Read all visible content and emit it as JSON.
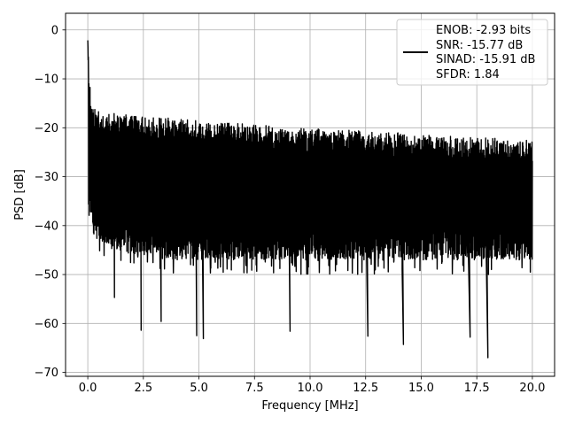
{
  "chart_data": {
    "type": "line",
    "title": "",
    "xlabel": "Frequency [MHz]",
    "ylabel": "PSD [dB]",
    "xlim": [
      -1.0,
      21.0
    ],
    "ylim": [
      -70.8,
      3.4
    ],
    "x_ticks": [
      0.0,
      2.5,
      5.0,
      7.5,
      10.0,
      12.5,
      15.0,
      17.5,
      20.0
    ],
    "x_tick_labels": [
      "0.0",
      "2.5",
      "5.0",
      "7.5",
      "10.0",
      "12.5",
      "15.0",
      "17.5",
      "20.0"
    ],
    "y_ticks": [
      0,
      -10,
      -20,
      -30,
      -40,
      -50,
      -60,
      -70
    ],
    "y_tick_labels": [
      "0",
      "−10",
      "−20",
      "−30",
      "−40",
      "−50",
      "−60",
      "−70"
    ],
    "grid": true,
    "legend_position": "upper right",
    "line_color": "#000000",
    "legend_lines": [
      "ENOB: -2.93 bits",
      "SNR: -15.77 dB",
      "SINAD: -15.91 dB",
      "SFDR: 1.84"
    ],
    "series": [
      {
        "upper_envelope": {
          "x": [
            0.0,
            0.05,
            0.15,
            0.3,
            0.6,
            1.0,
            2.0,
            3.0,
            4.0,
            5.0,
            6.0,
            7.0,
            8.0,
            9.0,
            10.0,
            11.0,
            12.0,
            13.0,
            14.0,
            15.0,
            16.0,
            17.0,
            18.0,
            19.0,
            20.0
          ],
          "y": [
            0,
            -8,
            -14,
            -16,
            -17,
            -17,
            -17.5,
            -18,
            -18,
            -18.5,
            -19,
            -19,
            -19.5,
            -20,
            -20,
            -20.5,
            -20.5,
            -21,
            -21,
            -21.5,
            -21.5,
            -22,
            -22,
            -22.5,
            -22.5
          ]
        },
        "lower_envelope": {
          "x": [
            0.0,
            0.3,
            1.0,
            2.0,
            3.0,
            4.0,
            5.0,
            6.0,
            7.0,
            8.0,
            9.0,
            10.0,
            11.0,
            12.0,
            13.0,
            14.0,
            15.0,
            16.0,
            17.0,
            18.0,
            19.0,
            20.0
          ],
          "y": [
            -35,
            -40,
            -42,
            -43,
            -43,
            -44,
            -44,
            -44,
            -44,
            -44,
            -44,
            -44,
            -44,
            -44,
            -44,
            -44,
            -44,
            -44,
            -44,
            -44,
            -44,
            -44
          ]
        },
        "deep_notches": {
          "x": [
            1.2,
            2.4,
            3.3,
            4.9,
            5.2,
            9.1,
            12.6,
            14.2,
            17.2,
            18.0
          ],
          "y": [
            -54.7,
            -61.4,
            -59.6,
            -62.5,
            -63.1,
            -61.6,
            -62.6,
            -64.3,
            -62.8,
            -67.0
          ]
        }
      }
    ]
  }
}
